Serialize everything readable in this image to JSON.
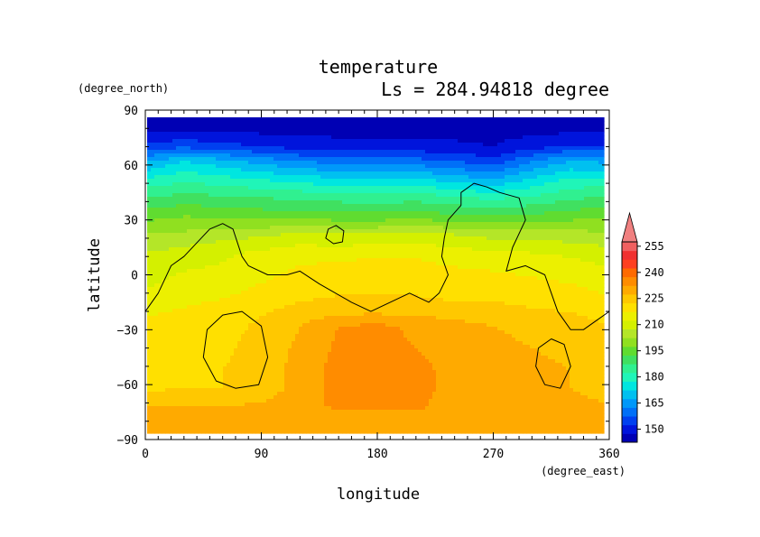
{
  "chart_data": {
    "type": "heatmap",
    "title": "temperature",
    "subtitle": "Ls = 284.94818 degree",
    "xlabel": "longitude",
    "ylabel": "latitude",
    "x_units": "(degree_east)",
    "y_units": "(degree_north)",
    "xlim": [
      0,
      360
    ],
    "ylim": [
      -90,
      90
    ],
    "x_ticks": [
      "0",
      "90",
      "180",
      "270",
      "360"
    ],
    "y_ticks": [
      "90",
      "60",
      "30",
      "0",
      "−30",
      "−60",
      "−90"
    ],
    "colorbar": {
      "levels": [
        145,
        150,
        155,
        160,
        165,
        170,
        175,
        180,
        185,
        190,
        195,
        200,
        205,
        210,
        215,
        220,
        225,
        230,
        235,
        240,
        245,
        250,
        255,
        260
      ],
      "tick_labels": [
        "150",
        "165",
        "180",
        "195",
        "210",
        "225",
        "240",
        "255"
      ],
      "colors": [
        "#0000b4",
        "#0014dc",
        "#0040f0",
        "#0070f8",
        "#0098fa",
        "#00c0f0",
        "#00e6e0",
        "#20f5b8",
        "#30f090",
        "#40e060",
        "#60dc30",
        "#90e020",
        "#b4e628",
        "#d4f000",
        "#ecf000",
        "#ffe000",
        "#ffc800",
        "#ffaa00",
        "#ff8c00",
        "#ff6a00",
        "#ff4020",
        "#f03030",
        "#f06060"
      ],
      "overflow_color": "#f08080"
    },
    "grid": [
      {
        "lat": 80,
        "values": [
          148,
          148,
          148,
          148,
          148,
          148,
          148,
          148,
          148,
          148,
          148,
          148,
          148
        ]
      },
      {
        "lat": 70,
        "values": [
          157,
          159,
          157,
          155,
          153,
          152,
          152,
          152,
          151,
          150,
          153,
          156,
          156
        ]
      },
      {
        "lat": 62,
        "values": [
          169,
          175,
          172,
          168,
          165,
          163,
          162,
          162,
          160,
          157,
          165,
          170,
          169
        ]
      },
      {
        "lat": 52,
        "values": [
          181,
          184,
          182,
          180,
          178,
          176,
          175,
          176,
          173,
          170,
          176,
          181,
          182
        ]
      },
      {
        "lat": 42,
        "values": [
          190,
          192,
          191,
          190,
          189,
          188,
          187,
          188,
          186,
          184,
          186,
          189,
          191
        ]
      },
      {
        "lat": 32,
        "values": [
          198,
          200,
          199,
          198,
          198,
          197,
          197,
          198,
          196,
          195,
          196,
          198,
          199
        ]
      },
      {
        "lat": 22,
        "values": [
          205,
          206,
          208,
          209,
          211,
          210,
          210,
          211,
          210,
          208,
          208,
          207,
          206
        ]
      },
      {
        "lat": 12,
        "values": [
          210,
          212,
          214,
          216,
          218,
          218,
          219,
          219,
          217,
          216,
          215,
          214,
          212
        ]
      },
      {
        "lat": 2,
        "values": [
          214,
          215,
          216,
          218,
          221,
          222,
          223,
          222,
          221,
          220,
          219,
          218,
          216
        ]
      },
      {
        "lat": -8,
        "values": [
          215,
          216,
          218,
          221,
          223,
          224,
          224,
          224,
          223,
          223,
          222,
          221,
          219
        ]
      },
      {
        "lat": -18,
        "values": [
          219,
          220,
          222,
          224,
          226,
          227,
          227,
          227,
          226,
          226,
          225,
          224,
          222
        ]
      },
      {
        "lat": -28,
        "values": [
          221,
          222,
          223,
          226,
          230,
          235,
          236,
          234,
          232,
          230,
          229,
          228,
          225
        ]
      },
      {
        "lat": -40,
        "values": [
          222,
          223,
          224,
          227,
          231,
          236,
          237,
          235,
          233,
          231,
          230,
          229,
          226
        ]
      },
      {
        "lat": -52,
        "values": [
          224,
          224,
          225,
          227,
          232,
          237,
          237,
          236,
          234,
          232,
          231,
          230,
          228
        ]
      },
      {
        "lat": -62,
        "values": [
          224,
          225,
          225,
          227,
          232,
          237,
          237,
          236,
          234,
          232,
          231,
          230,
          229
        ]
      },
      {
        "lat": -72,
        "values": [
          230,
          230,
          230,
          231,
          233,
          236,
          236,
          236,
          233,
          231,
          231,
          231,
          230
        ]
      },
      {
        "lat": -82,
        "values": [
          230,
          230,
          230,
          230,
          230,
          230,
          230,
          230,
          230,
          230,
          230,
          230,
          230
        ]
      }
    ],
    "contours": [
      {
        "name": "continent-main",
        "closed": false,
        "points": [
          [
            0,
            -20
          ],
          [
            10,
            -10
          ],
          [
            20,
            5
          ],
          [
            30,
            10
          ],
          [
            50,
            25
          ],
          [
            60,
            28
          ],
          [
            68,
            25
          ],
          [
            75,
            10
          ],
          [
            80,
            5
          ],
          [
            95,
            0
          ],
          [
            110,
            0
          ],
          [
            120,
            2
          ],
          [
            135,
            -5
          ],
          [
            160,
            -15
          ],
          [
            175,
            -20
          ],
          [
            190,
            -15
          ],
          [
            205,
            -10
          ],
          [
            220,
            -15
          ],
          [
            228,
            -10
          ],
          [
            235,
            0
          ],
          [
            230,
            10
          ],
          [
            232,
            20
          ],
          [
            235,
            30
          ],
          [
            245,
            38
          ],
          [
            245,
            45
          ],
          [
            255,
            50
          ],
          [
            265,
            48
          ],
          [
            275,
            45
          ],
          [
            290,
            42
          ],
          [
            295,
            30
          ],
          [
            285,
            15
          ],
          [
            280,
            2
          ],
          [
            295,
            5
          ],
          [
            310,
            0
          ],
          [
            315,
            -10
          ],
          [
            320,
            -20
          ],
          [
            330,
            -30
          ],
          [
            340,
            -30
          ],
          [
            350,
            -25
          ],
          [
            360,
            -20
          ]
        ]
      },
      {
        "name": "small-island",
        "closed": true,
        "points": [
          [
            140,
            20
          ],
          [
            142,
            25
          ],
          [
            148,
            27
          ],
          [
            154,
            24
          ],
          [
            153,
            18
          ],
          [
            146,
            17
          ]
        ]
      },
      {
        "name": "west-crater",
        "closed": true,
        "points": [
          [
            48,
            -30
          ],
          [
            60,
            -22
          ],
          [
            75,
            -20
          ],
          [
            90,
            -28
          ],
          [
            95,
            -45
          ],
          [
            88,
            -60
          ],
          [
            70,
            -62
          ],
          [
            55,
            -58
          ],
          [
            45,
            -45
          ]
        ]
      },
      {
        "name": "east-crater",
        "closed": true,
        "points": [
          [
            305,
            -40
          ],
          [
            315,
            -35
          ],
          [
            325,
            -38
          ],
          [
            330,
            -50
          ],
          [
            322,
            -62
          ],
          [
            310,
            -60
          ],
          [
            303,
            -50
          ]
        ]
      }
    ]
  }
}
